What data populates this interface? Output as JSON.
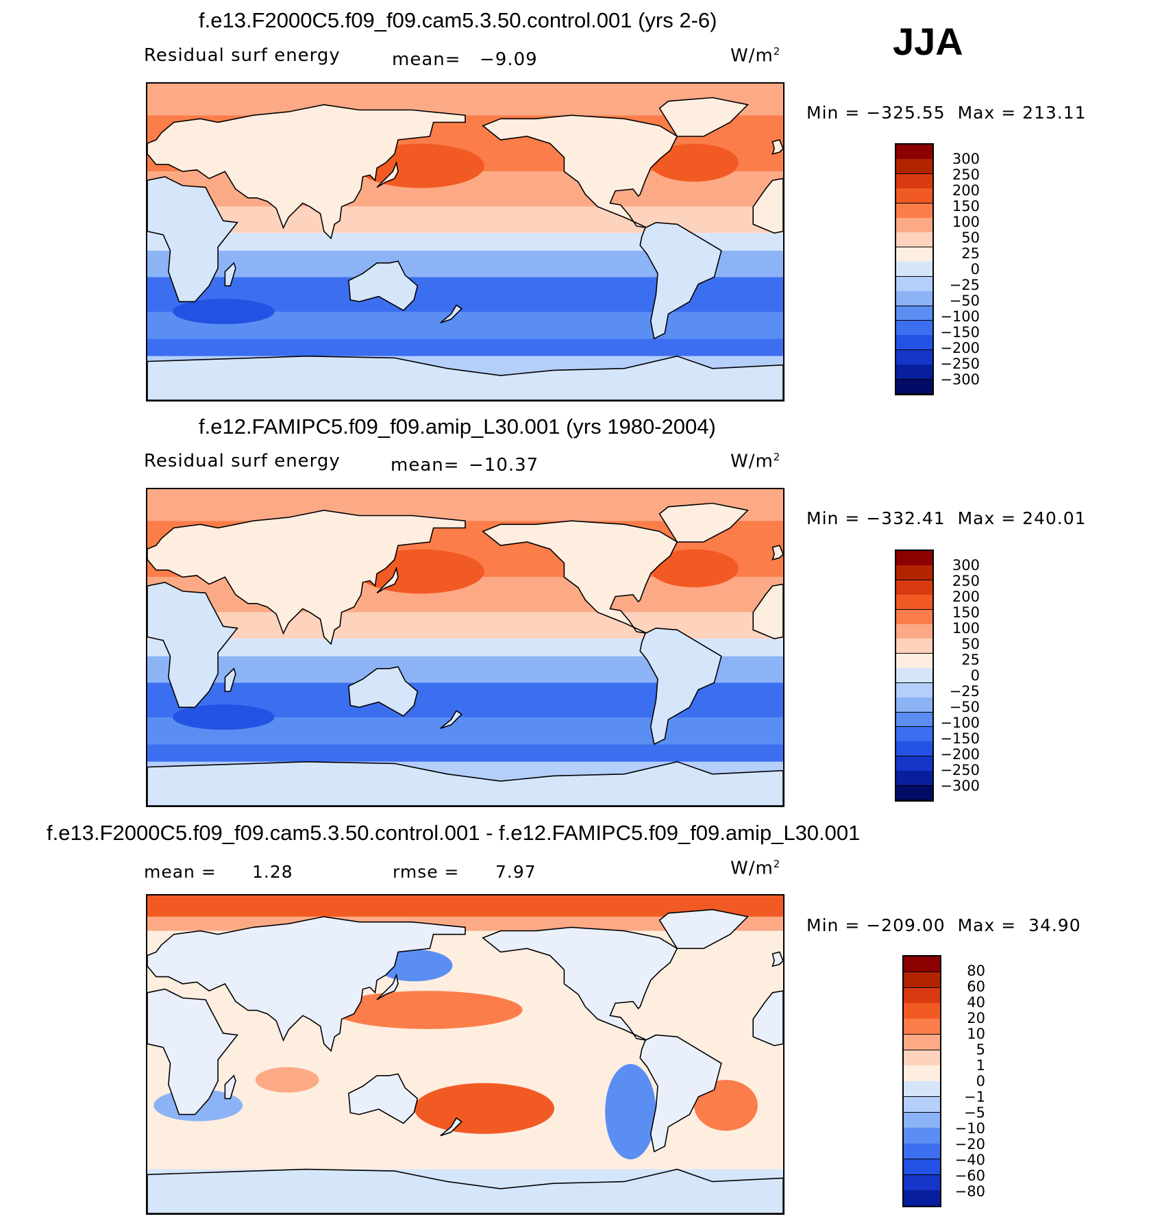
{
  "season": "JJA",
  "units": "W/m",
  "units_sup": "2",
  "colors": {
    "abs": [
      "#8b0000",
      "#b22400",
      "#d93a10",
      "#f25a24",
      "#fb7d4a",
      "#fcaa86",
      "#fdd3bd",
      "#fdeee0",
      "#d5e6fb",
      "#b4cffa",
      "#8cb3f6",
      "#5b8ef2",
      "#3c6ef0",
      "#2452e4",
      "#1536c8",
      "#071f9c",
      "#020b66"
    ],
    "diff": [
      "#8b0000",
      "#b22400",
      "#d93a10",
      "#f25a24",
      "#fb7d4a",
      "#fcaa86",
      "#fdd3bd",
      "#fdeee0",
      "#d5e6fb",
      "#b4cffa",
      "#8cb3f6",
      "#5b8ef2",
      "#3c6ef0",
      "#2452e4",
      "#1536c8",
      "#071f9c"
    ]
  },
  "chart_data": [
    {
      "type": "heatmap",
      "title": "f.e13.F2000C5.f09_f09.cam5.3.50.control.001 (yrs 2-6)",
      "variable": "Residual surf energy",
      "mean_label": "mean=",
      "mean_value": "−9.09",
      "units": "W/m2",
      "min_label": "Min",
      "max_label": "Max",
      "min_value": "−325.55",
      "max_value": "213.11",
      "min": -325.55,
      "max": 213.11,
      "levels": [
        "300",
        "250",
        "200",
        "150",
        "100",
        "50",
        "25",
        "0",
        "−25",
        "−50",
        "−100",
        "−150",
        "−200",
        "−250",
        "−300"
      ]
    },
    {
      "type": "heatmap",
      "title": "f.e12.FAMIPC5.f09_f09.amip_L30.001 (yrs 1980-2004)",
      "variable": "Residual surf energy",
      "mean_label": "mean=",
      "mean_value": "−10.37",
      "units": "W/m2",
      "min_label": "Min",
      "max_label": "Max",
      "min_value": "−332.41",
      "max_value": "240.01",
      "min": -332.41,
      "max": 240.01,
      "levels": [
        "300",
        "250",
        "200",
        "150",
        "100",
        "50",
        "25",
        "0",
        "−25",
        "−50",
        "−100",
        "−150",
        "−200",
        "−250",
        "−300"
      ]
    },
    {
      "type": "heatmap",
      "title": "f.e13.F2000C5.f09_f09.cam5.3.50.control.001 - f.e12.FAMIPC5.f09_f09.amip_L30.001",
      "mean_label": "mean =",
      "mean_value": "1.28",
      "rmse_label": "rmse =",
      "rmse_value": "7.97",
      "units": "W/m2",
      "min_label": "Min",
      "max_label": "Max",
      "min_value": "−209.00",
      "max_value": "34.90",
      "min": -209.0,
      "max": 34.9,
      "levels": [
        "80",
        "60",
        "40",
        "20",
        "10",
        "5",
        "1",
        "0",
        "−1",
        "−5",
        "−10",
        "−20",
        "−40",
        "−60",
        "−80"
      ]
    }
  ]
}
